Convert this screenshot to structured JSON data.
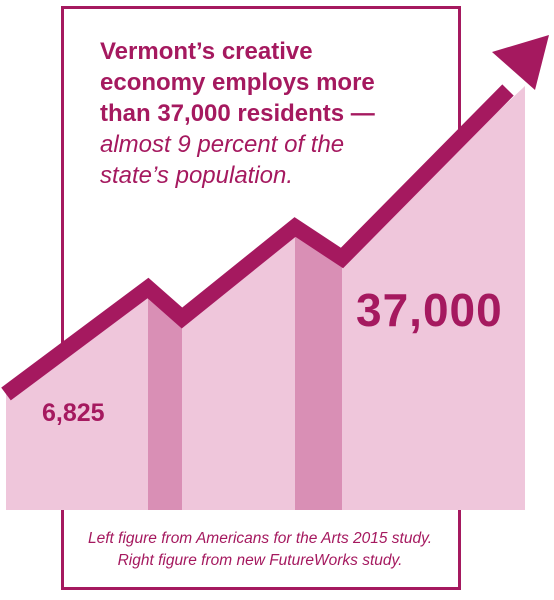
{
  "headline": {
    "bold_lines": [
      "Vermont’s creative",
      "economy employs more",
      "than 37,000 residents —"
    ],
    "italic_lines": [
      "almost 9 percent of the",
      "state’s population."
    ]
  },
  "chart_data": {
    "type": "area",
    "title": "Vermont’s creative economy employs more than 37,000 residents — almost 9 percent of the state’s population.",
    "categories": [
      "Americans for the Arts 2015 study",
      "FutureWorks study"
    ],
    "values": [
      6825,
      37000
    ],
    "data_labels": [
      "6,825",
      "37,000"
    ],
    "trend": "up-arrow",
    "colors": {
      "accent": "#a5195f",
      "area_light": "#efc6db",
      "area_dark": "#d98fb5"
    }
  },
  "caption": {
    "lines": [
      "Left figure from Americans for the Arts 2015 study.",
      "Right figure from new FutureWorks study."
    ]
  }
}
